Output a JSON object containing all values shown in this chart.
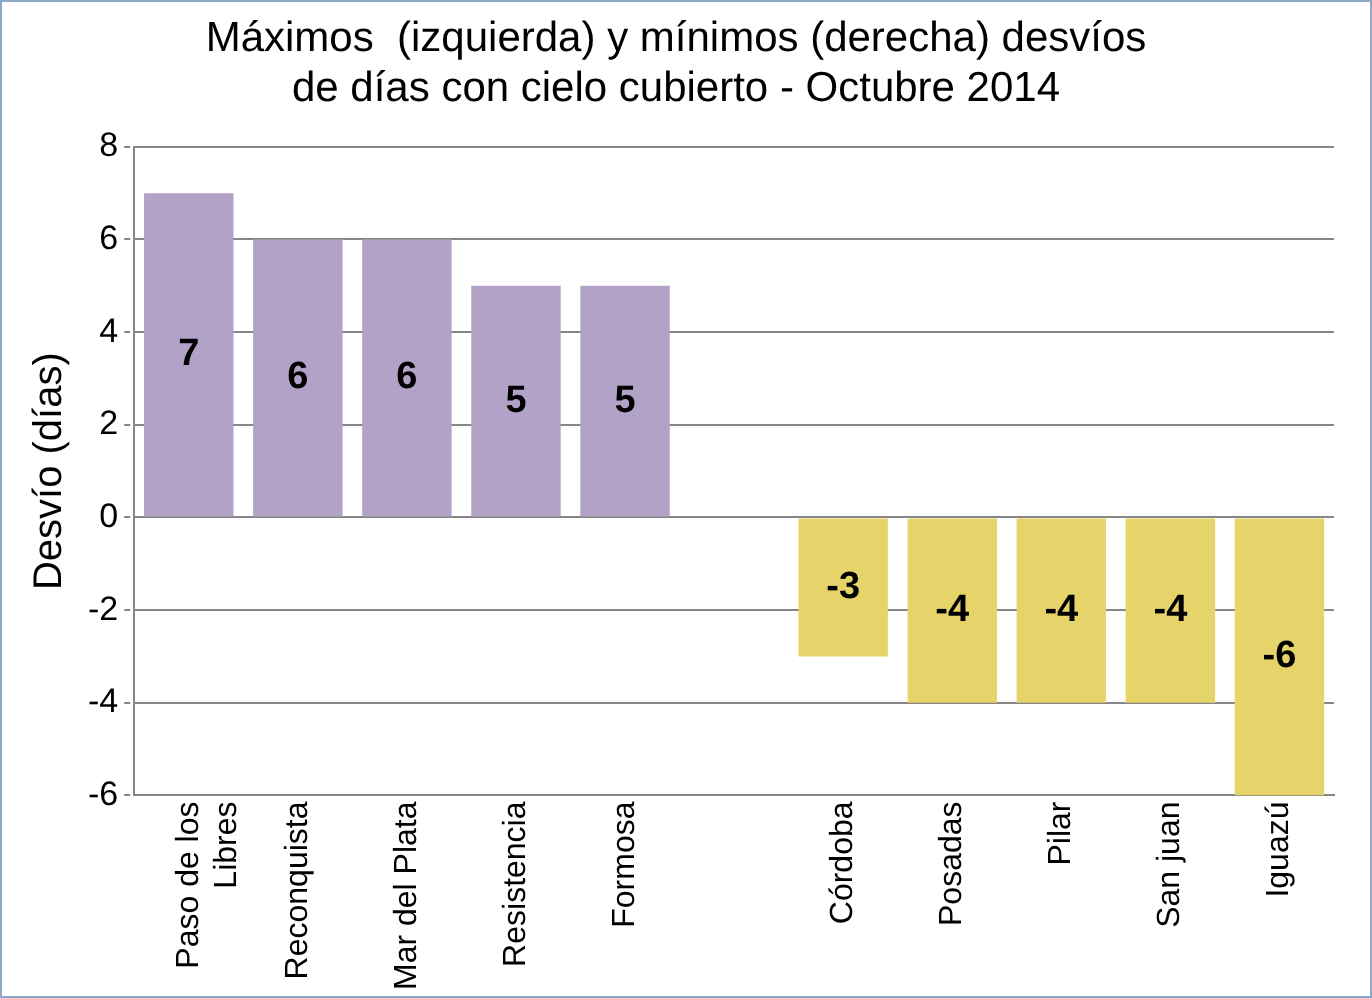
{
  "chart_data": {
    "type": "bar",
    "title": "Máximos  (izquierda) y mínimos (derecha) desvíos\nde días con cielo cubierto - Octubre 2014",
    "ylabel": "Desvío (días)",
    "categories": [
      "Paso de los Libres",
      "Reconquista",
      "Mar del Plata",
      "Resistencia",
      "Formosa",
      null,
      "Córdoba",
      "Posadas",
      "Pilar",
      "San juan",
      "Iguazú"
    ],
    "values": [
      7,
      6,
      6,
      5,
      5,
      null,
      -3,
      -4,
      -4,
      -4,
      -6
    ],
    "colors": [
      "#b3a2c7",
      "#b3a2c7",
      "#b3a2c7",
      "#b3a2c7",
      "#b3a2c7",
      null,
      "#e6d46a",
      "#e6d46a",
      "#e6d46a",
      "#e6d46a",
      "#e6d46a"
    ],
    "ylim": [
      -6,
      8
    ],
    "yticks": [
      -6,
      -4,
      -2,
      0,
      2,
      4,
      6,
      8
    ],
    "grid": "y",
    "data_labels": true,
    "legend": false
  }
}
